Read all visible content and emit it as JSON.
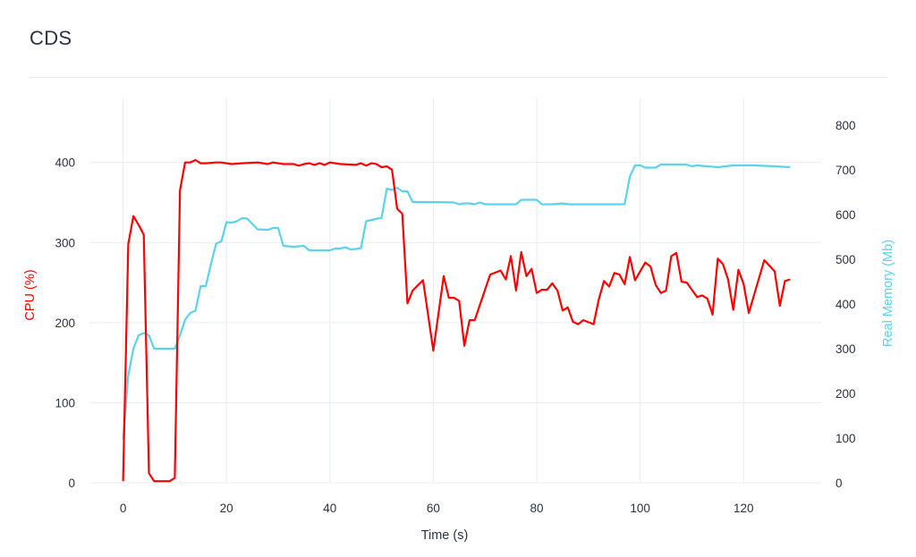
{
  "page": {
    "title": "CDS"
  },
  "chart_data": {
    "type": "line",
    "title": "CDS",
    "xlabel": "Time (s)",
    "ylabel": "CPU (%)",
    "y2label": "Real Memory (Mb)",
    "xlim": [
      -6.5,
      135
    ],
    "ylim": [
      0,
      480
    ],
    "y2lim": [
      0,
      860
    ],
    "x_ticks": [
      0,
      20,
      40,
      60,
      80,
      100,
      120
    ],
    "y_ticks": [
      0,
      100,
      200,
      300,
      400
    ],
    "y2_ticks": [
      0,
      100,
      200,
      300,
      400,
      500,
      600,
      700,
      800
    ],
    "grid": true,
    "colors": {
      "cpu": "#ff0000",
      "memory": "#5bd3ec",
      "grid": "#e8ecf5",
      "text": "#2a3142"
    },
    "series": [
      {
        "name": "CPU (%)",
        "axis": "y",
        "points": [
          [
            0,
            2
          ],
          [
            1,
            298
          ],
          [
            2,
            333
          ],
          [
            3,
            322
          ],
          [
            4,
            310
          ],
          [
            5,
            12
          ],
          [
            6,
            2
          ],
          [
            7,
            2
          ],
          [
            8,
            2
          ],
          [
            9,
            2
          ],
          [
            10,
            6
          ],
          [
            11,
            365
          ],
          [
            12,
            400
          ],
          [
            13,
            400
          ],
          [
            14,
            403
          ],
          [
            15,
            399
          ],
          [
            16,
            399
          ],
          [
            18,
            400
          ],
          [
            19,
            400
          ],
          [
            21,
            398
          ],
          [
            23,
            399
          ],
          [
            26,
            400
          ],
          [
            28,
            398
          ],
          [
            29,
            400
          ],
          [
            31,
            398
          ],
          [
            33,
            398
          ],
          [
            34,
            396
          ],
          [
            35,
            398
          ],
          [
            36,
            399
          ],
          [
            37,
            397
          ],
          [
            38,
            399
          ],
          [
            39,
            397
          ],
          [
            40,
            400
          ],
          [
            42,
            398
          ],
          [
            45,
            397
          ],
          [
            46,
            399
          ],
          [
            47,
            396
          ],
          [
            48,
            399
          ],
          [
            49,
            398
          ],
          [
            50,
            394
          ],
          [
            51,
            395
          ],
          [
            52,
            391
          ],
          [
            53,
            342
          ],
          [
            54,
            336
          ],
          [
            55,
            224
          ],
          [
            56,
            240
          ],
          [
            58,
            253
          ],
          [
            60,
            165
          ],
          [
            62,
            258
          ],
          [
            63,
            231
          ],
          [
            64,
            231
          ],
          [
            65,
            227
          ],
          [
            66,
            171
          ],
          [
            67,
            203
          ],
          [
            68,
            203
          ],
          [
            71,
            260
          ],
          [
            73,
            265
          ],
          [
            74,
            254
          ],
          [
            75,
            283
          ],
          [
            76,
            240
          ],
          [
            77,
            288
          ],
          [
            78,
            258
          ],
          [
            79,
            267
          ],
          [
            80,
            237
          ],
          [
            81,
            241
          ],
          [
            82,
            241
          ],
          [
            83,
            249
          ],
          [
            84,
            240
          ],
          [
            85,
            215
          ],
          [
            86,
            219
          ],
          [
            87,
            201
          ],
          [
            88,
            198
          ],
          [
            89,
            203
          ],
          [
            91,
            198
          ],
          [
            92,
            229
          ],
          [
            93,
            252
          ],
          [
            94,
            245
          ],
          [
            95,
            262
          ],
          [
            96,
            260
          ],
          [
            97,
            248
          ],
          [
            98,
            282
          ],
          [
            99,
            253
          ],
          [
            101,
            275
          ],
          [
            102,
            270
          ],
          [
            103,
            247
          ],
          [
            104,
            237
          ],
          [
            105,
            240
          ],
          [
            106,
            283
          ],
          [
            107,
            287
          ],
          [
            108,
            251
          ],
          [
            109,
            250
          ],
          [
            111,
            232
          ],
          [
            112,
            234
          ],
          [
            113,
            230
          ],
          [
            114,
            210
          ],
          [
            115,
            280
          ],
          [
            116,
            273
          ],
          [
            117,
            254
          ],
          [
            118,
            216
          ],
          [
            119,
            266
          ],
          [
            120,
            248
          ],
          [
            121,
            212
          ],
          [
            124,
            278
          ],
          [
            126,
            264
          ],
          [
            127,
            221
          ],
          [
            128,
            252
          ],
          [
            129,
            254
          ]
        ]
      },
      {
        "name": "Real Memory (Mb)",
        "axis": "y2",
        "points": [
          [
            0,
            97
          ],
          [
            1,
            240
          ],
          [
            2,
            300
          ],
          [
            3,
            330
          ],
          [
            4,
            335
          ],
          [
            5,
            330
          ],
          [
            6,
            300
          ],
          [
            8,
            300
          ],
          [
            10,
            300
          ],
          [
            11,
            330
          ],
          [
            12,
            365
          ],
          [
            13,
            380
          ],
          [
            14,
            385
          ],
          [
            15,
            440
          ],
          [
            16,
            440
          ],
          [
            17,
            490
          ],
          [
            18,
            535
          ],
          [
            19,
            540
          ],
          [
            20,
            583
          ],
          [
            21,
            582
          ],
          [
            22,
            585
          ],
          [
            23,
            592
          ],
          [
            24,
            591
          ],
          [
            26,
            567
          ],
          [
            28,
            566
          ],
          [
            29,
            570
          ],
          [
            30,
            570
          ],
          [
            31,
            530
          ],
          [
            33,
            528
          ],
          [
            35,
            530
          ],
          [
            36,
            520
          ],
          [
            38,
            520
          ],
          [
            40,
            520
          ],
          [
            41,
            524
          ],
          [
            42,
            524
          ],
          [
            43,
            527
          ],
          [
            44,
            522
          ],
          [
            45,
            523
          ],
          [
            46,
            525
          ],
          [
            47,
            585
          ],
          [
            48,
            588
          ],
          [
            50,
            593
          ],
          [
            51,
            658
          ],
          [
            52,
            655
          ],
          [
            53,
            660
          ],
          [
            54,
            652
          ],
          [
            55,
            652
          ],
          [
            56,
            628
          ],
          [
            60,
            628
          ],
          [
            64,
            627
          ],
          [
            65,
            623
          ],
          [
            66,
            625
          ],
          [
            67,
            625
          ],
          [
            68,
            623
          ],
          [
            69,
            627
          ],
          [
            70,
            623
          ],
          [
            72,
            623
          ],
          [
            74,
            623
          ],
          [
            76,
            623
          ],
          [
            77,
            633
          ],
          [
            78,
            633
          ],
          [
            80,
            633
          ],
          [
            81,
            623
          ],
          [
            83,
            623
          ],
          [
            85,
            625
          ],
          [
            86,
            623
          ],
          [
            88,
            623
          ],
          [
            96,
            623
          ],
          [
            97,
            623
          ],
          [
            98,
            685
          ],
          [
            99,
            710
          ],
          [
            100,
            710
          ],
          [
            101,
            705
          ],
          [
            103,
            705
          ],
          [
            104,
            712
          ],
          [
            106,
            712
          ],
          [
            109,
            712
          ],
          [
            110,
            708
          ],
          [
            111,
            710
          ],
          [
            113,
            708
          ],
          [
            115,
            706
          ],
          [
            118,
            710
          ],
          [
            122,
            710
          ],
          [
            126,
            708
          ],
          [
            129,
            706
          ]
        ]
      }
    ]
  }
}
